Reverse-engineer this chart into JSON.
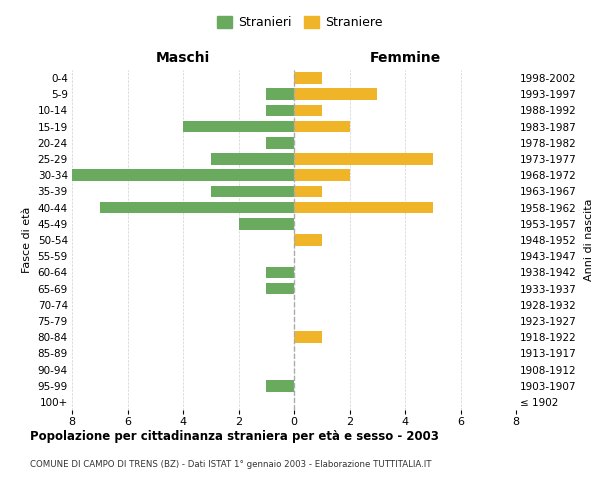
{
  "age_groups": [
    "100+",
    "95-99",
    "90-94",
    "85-89",
    "80-84",
    "75-79",
    "70-74",
    "65-69",
    "60-64",
    "55-59",
    "50-54",
    "45-49",
    "40-44",
    "35-39",
    "30-34",
    "25-29",
    "20-24",
    "15-19",
    "10-14",
    "5-9",
    "0-4"
  ],
  "birth_years": [
    "≤ 1902",
    "1903-1907",
    "1908-1912",
    "1913-1917",
    "1918-1922",
    "1923-1927",
    "1928-1932",
    "1933-1937",
    "1938-1942",
    "1943-1947",
    "1948-1952",
    "1953-1957",
    "1958-1962",
    "1963-1967",
    "1968-1972",
    "1973-1977",
    "1978-1982",
    "1983-1987",
    "1988-1992",
    "1993-1997",
    "1998-2002"
  ],
  "maschi": [
    0,
    1,
    0,
    0,
    0,
    0,
    0,
    1,
    1,
    0,
    0,
    2,
    7,
    3,
    8,
    3,
    1,
    4,
    1,
    1,
    0
  ],
  "femmine": [
    0,
    0,
    0,
    0,
    1,
    0,
    0,
    0,
    0,
    0,
    1,
    0,
    5,
    1,
    2,
    5,
    0,
    2,
    1,
    3,
    1
  ],
  "maschi_color": "#6aaa5e",
  "femmine_color": "#f0b429",
  "title": "Popolazione per cittadinanza straniera per età e sesso - 2003",
  "subtitle": "COMUNE DI CAMPO DI TRENS (BZ) - Dati ISTAT 1° gennaio 2003 - Elaborazione TUTTITALIA.IT",
  "xlabel_left": "Maschi",
  "xlabel_right": "Femmine",
  "ylabel_left": "Fasce di età",
  "ylabel_right": "Anni di nascita",
  "legend_maschi": "Stranieri",
  "legend_femmine": "Straniere",
  "xlim": 8,
  "background_color": "#ffffff",
  "grid_color": "#d0d0d0"
}
